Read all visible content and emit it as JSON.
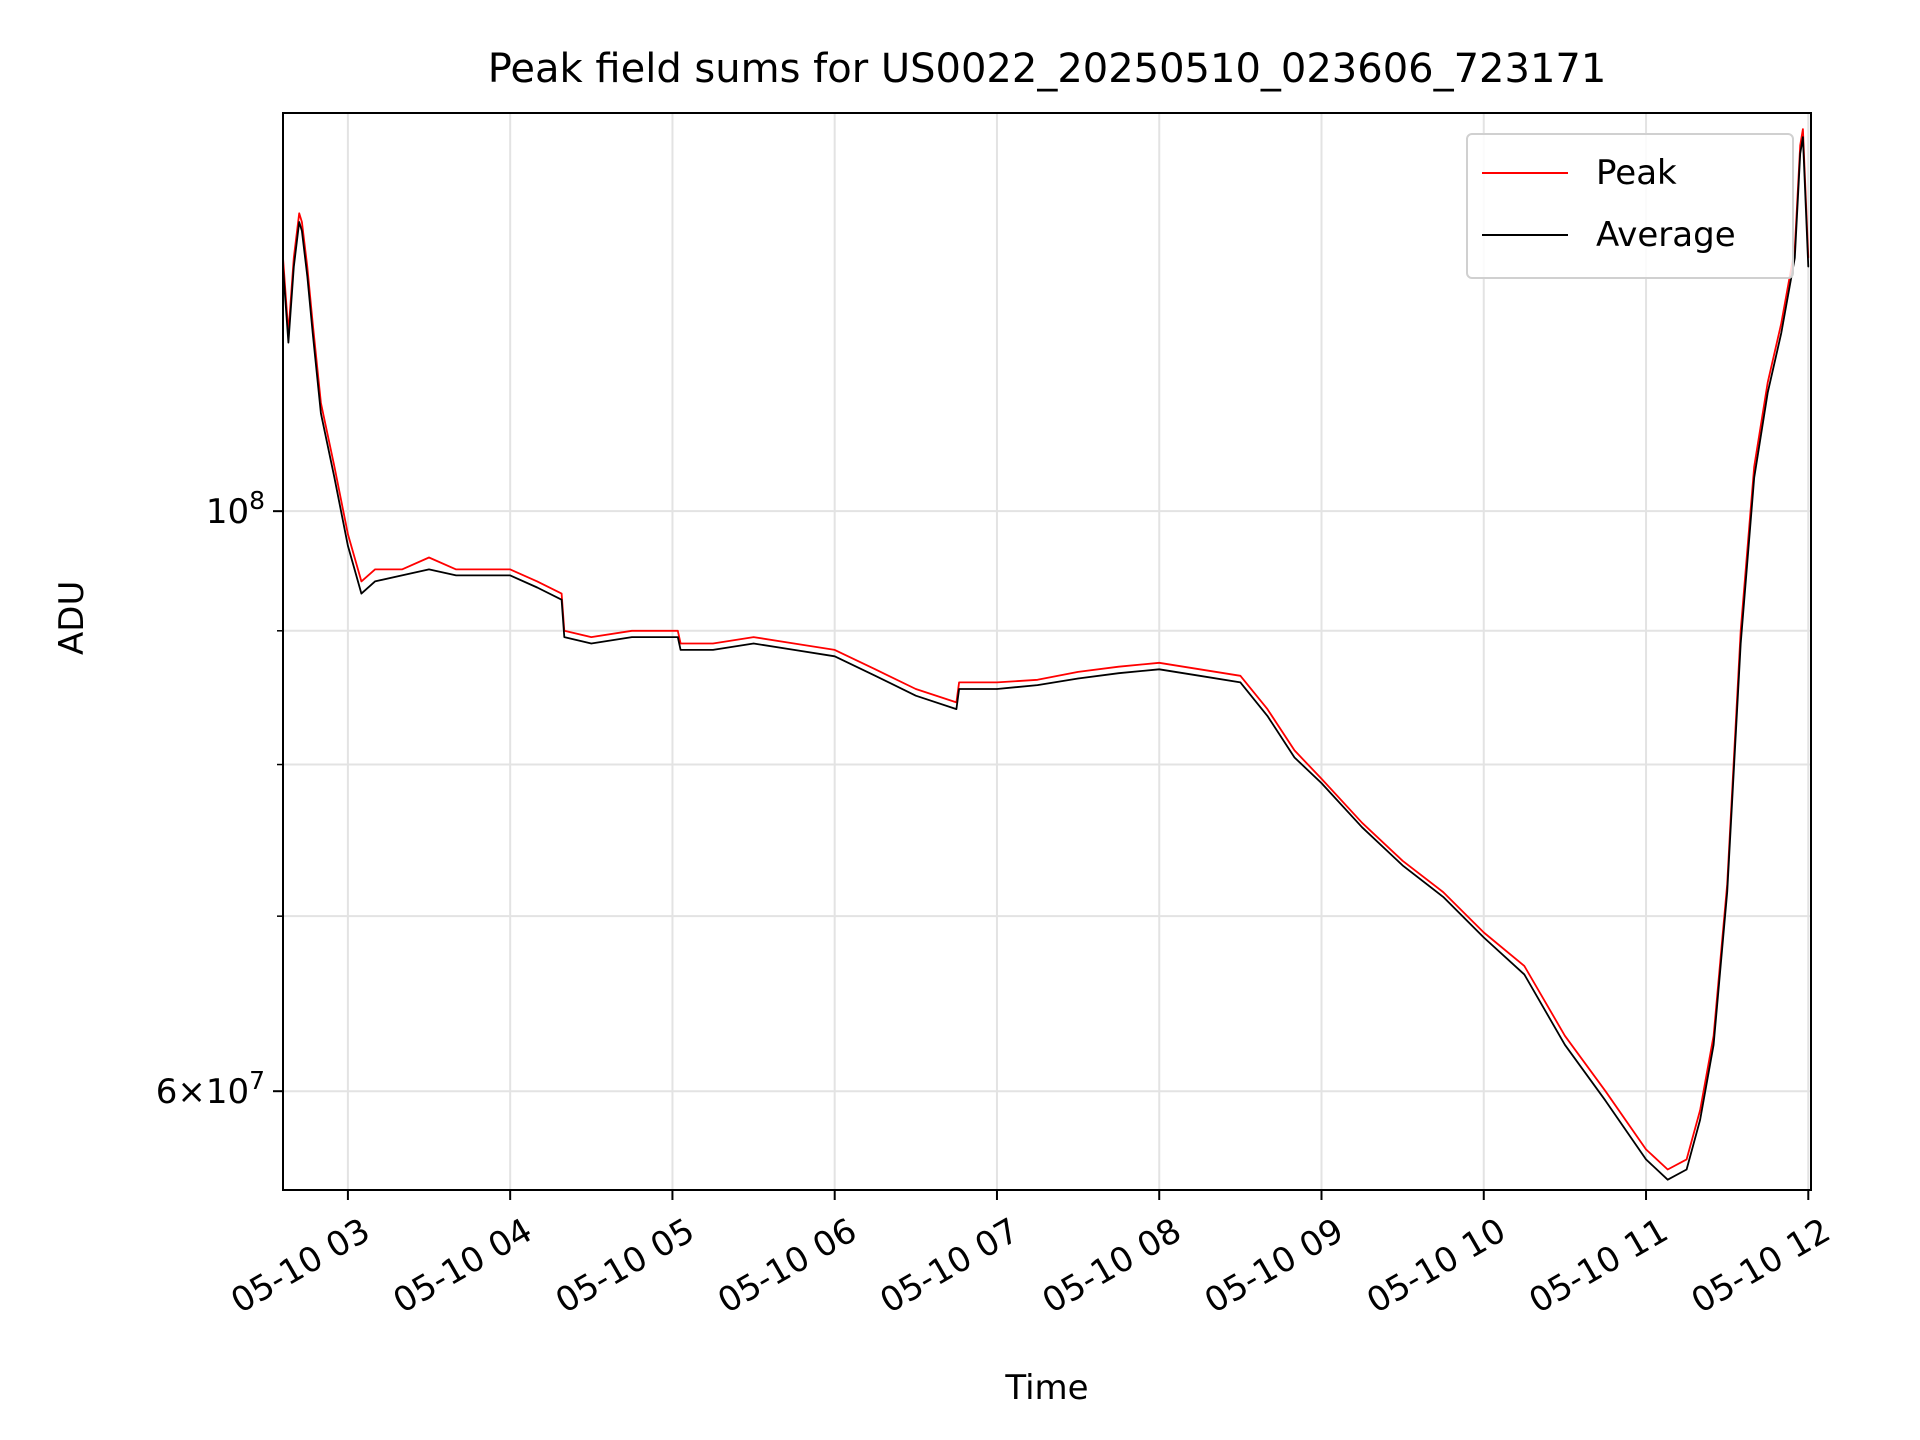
{
  "chart_data": {
    "type": "line",
    "title": "Peak field sums for US0022_20250510_023606_723171",
    "xlabel": "Time",
    "ylabel": "ADU",
    "x_tick_labels": [
      "05-10 03",
      "05-10 04",
      "05-10 05",
      "05-10 06",
      "05-10 07",
      "05-10 08",
      "05-10 09",
      "05-10 10",
      "05-10 11",
      "05-10 12"
    ],
    "x_ticks": [
      "2025-05-10 03:00",
      "2025-05-10 04:00",
      "2025-05-10 05:00",
      "2025-05-10 06:00",
      "2025-05-10 07:00",
      "2025-05-10 08:00",
      "2025-05-10 09:00",
      "2025-05-10 10:00",
      "2025-05-10 11:00",
      "2025-05-10 12:00"
    ],
    "xlim": [
      "2025-05-10 02:36",
      "2025-05-10 12:01"
    ],
    "yscale": "log",
    "ylim": [
      55000000,
      142000000
    ],
    "y_tick_labels": [
      "10^8",
      "6×10^7"
    ],
    "y_tick_values": [
      100000000,
      60000000
    ],
    "y_minor_grid_values": [
      90000000,
      80000000,
      70000000
    ],
    "grid": true,
    "legend_position": "upper right",
    "series": [
      {
        "name": "Peak",
        "color": "#ff0000",
        "x": [
          "2025-05-10 02:36",
          "2025-05-10 02:38",
          "2025-05-10 02:40",
          "2025-05-10 02:42",
          "2025-05-10 02:43",
          "2025-05-10 02:45",
          "2025-05-10 02:47",
          "2025-05-10 02:50",
          "2025-05-10 02:55",
          "2025-05-10 03:00",
          "2025-05-10 03:05",
          "2025-05-10 03:10",
          "2025-05-10 03:20",
          "2025-05-10 03:30",
          "2025-05-10 03:40",
          "2025-05-10 03:50",
          "2025-05-10 04:00",
          "2025-05-10 04:10",
          "2025-05-10 04:19",
          "2025-05-10 04:20",
          "2025-05-10 04:30",
          "2025-05-10 04:45",
          "2025-05-10 05:02",
          "2025-05-10 05:03",
          "2025-05-10 05:15",
          "2025-05-10 05:30",
          "2025-05-10 05:45",
          "2025-05-10 06:00",
          "2025-05-10 06:15",
          "2025-05-10 06:30",
          "2025-05-10 06:45",
          "2025-05-10 06:46",
          "2025-05-10 07:00",
          "2025-05-10 07:15",
          "2025-05-10 07:30",
          "2025-05-10 07:45",
          "2025-05-10 08:00",
          "2025-05-10 08:15",
          "2025-05-10 08:30",
          "2025-05-10 08:40",
          "2025-05-10 08:50",
          "2025-05-10 09:00",
          "2025-05-10 09:15",
          "2025-05-10 09:30",
          "2025-05-10 09:45",
          "2025-05-10 10:00",
          "2025-05-10 10:15",
          "2025-05-10 10:30",
          "2025-05-10 10:45",
          "2025-05-10 11:00",
          "2025-05-10 11:08",
          "2025-05-10 11:15",
          "2025-05-10 11:20",
          "2025-05-10 11:25",
          "2025-05-10 11:30",
          "2025-05-10 11:35",
          "2025-05-10 11:40",
          "2025-05-10 11:45",
          "2025-05-10 11:50",
          "2025-05-10 11:55",
          "2025-05-10 11:57",
          "2025-05-10 11:58",
          "2025-05-10 12:00"
        ],
        "y": [
          125000000,
          117000000,
          125000000,
          130000000,
          129000000,
          124000000,
          118000000,
          110000000,
          104000000,
          98000000,
          94000000,
          95000000,
          95000000,
          96000000,
          95000000,
          95000000,
          95000000,
          94000000,
          93000000,
          90000000,
          89500000,
          90000000,
          90000000,
          89000000,
          89000000,
          89500000,
          89000000,
          88500000,
          87000000,
          85500000,
          84500000,
          86000000,
          86000000,
          86200000,
          86800000,
          87200000,
          87500000,
          87000000,
          86500000,
          84000000,
          81000000,
          79000000,
          76000000,
          73500000,
          71500000,
          69000000,
          67000000,
          63000000,
          60000000,
          57000000,
          56000000,
          56500000,
          59000000,
          63000000,
          72000000,
          90000000,
          104000000,
          112000000,
          118000000,
          126000000,
          138000000,
          140000000,
          125000000
        ]
      },
      {
        "name": "Average",
        "color": "#000000",
        "x": [
          "2025-05-10 02:36",
          "2025-05-10 02:38",
          "2025-05-10 02:40",
          "2025-05-10 02:42",
          "2025-05-10 02:43",
          "2025-05-10 02:45",
          "2025-05-10 02:47",
          "2025-05-10 02:50",
          "2025-05-10 02:55",
          "2025-05-10 03:00",
          "2025-05-10 03:05",
          "2025-05-10 03:10",
          "2025-05-10 03:20",
          "2025-05-10 03:30",
          "2025-05-10 03:40",
          "2025-05-10 03:50",
          "2025-05-10 04:00",
          "2025-05-10 04:10",
          "2025-05-10 04:19",
          "2025-05-10 04:20",
          "2025-05-10 04:30",
          "2025-05-10 04:45",
          "2025-05-10 05:02",
          "2025-05-10 05:03",
          "2025-05-10 05:15",
          "2025-05-10 05:30",
          "2025-05-10 05:45",
          "2025-05-10 06:00",
          "2025-05-10 06:15",
          "2025-05-10 06:30",
          "2025-05-10 06:45",
          "2025-05-10 06:46",
          "2025-05-10 07:00",
          "2025-05-10 07:15",
          "2025-05-10 07:30",
          "2025-05-10 07:45",
          "2025-05-10 08:00",
          "2025-05-10 08:15",
          "2025-05-10 08:30",
          "2025-05-10 08:40",
          "2025-05-10 08:50",
          "2025-05-10 09:00",
          "2025-05-10 09:15",
          "2025-05-10 09:30",
          "2025-05-10 09:45",
          "2025-05-10 10:00",
          "2025-05-10 10:15",
          "2025-05-10 10:30",
          "2025-05-10 10:45",
          "2025-05-10 11:00",
          "2025-05-10 11:08",
          "2025-05-10 11:15",
          "2025-05-10 11:20",
          "2025-05-10 11:25",
          "2025-05-10 11:30",
          "2025-05-10 11:35",
          "2025-05-10 11:40",
          "2025-05-10 11:45",
          "2025-05-10 11:50",
          "2025-05-10 11:55",
          "2025-05-10 11:57",
          "2025-05-10 11:58",
          "2025-05-10 12:00"
        ],
        "y": [
          124000000,
          116000000,
          124000000,
          129000000,
          128000000,
          123000000,
          117000000,
          109000000,
          103000000,
          97000000,
          93000000,
          94000000,
          94500000,
          95000000,
          94500000,
          94500000,
          94500000,
          93500000,
          92500000,
          89500000,
          89000000,
          89500000,
          89500000,
          88500000,
          88500000,
          89000000,
          88500000,
          88000000,
          86500000,
          85000000,
          84000000,
          85500000,
          85500000,
          85800000,
          86300000,
          86700000,
          87000000,
          86500000,
          86000000,
          83500000,
          80500000,
          78700000,
          75700000,
          73200000,
          71200000,
          68700000,
          66500000,
          62500000,
          59500000,
          56500000,
          55500000,
          56000000,
          58500000,
          62500000,
          71500000,
          89000000,
          103000000,
          111000000,
          117000000,
          125000000,
          137000000,
          139000000,
          124000000
        ]
      }
    ]
  }
}
